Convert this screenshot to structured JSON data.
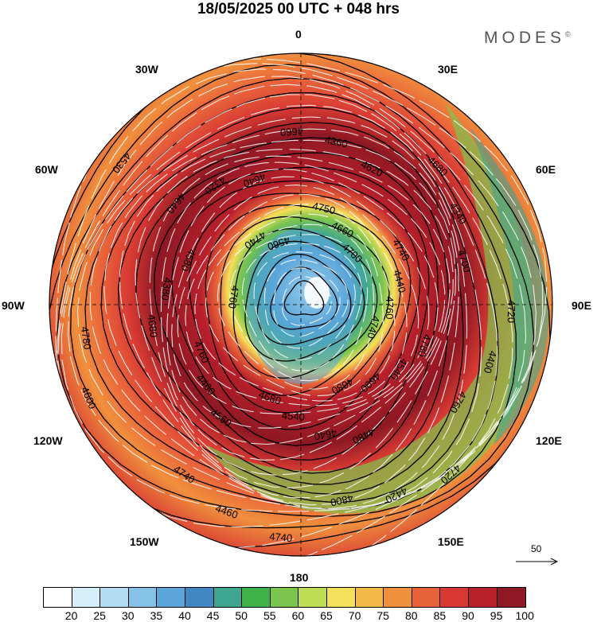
{
  "header": {
    "title": "18/05/2025  00 UTC  + 048 hrs",
    "brand": "MODES",
    "brand_mark": "©"
  },
  "map": {
    "projection": "north-polar-stereographic",
    "longitude_labels": {
      "n": "0",
      "e30": "30E",
      "e60": "60E",
      "e90": "90E",
      "e120": "120E",
      "e150": "150E",
      "s": "180",
      "w150": "150W",
      "w120": "120W",
      "w90": "90W",
      "w60": "60W",
      "w30": "30W"
    },
    "contour_labels": [
      "4740",
      "4680",
      "4680",
      "4760",
      "4580",
      "4640",
      "4620",
      "4700",
      "4760",
      "4800",
      "4740",
      "4780",
      "4530",
      "4700",
      "4700",
      "4760",
      "4600",
      "4540",
      "4460",
      "4380",
      "4320",
      "4360",
      "4340",
      "4400",
      "4420",
      "4460",
      "4600",
      "4560",
      "4560",
      "4660",
      "4440",
      "4540",
      "4640",
      "4560",
      "4680",
      "4640",
      "4660",
      "4680",
      "4720",
      "4720",
      "4740",
      "4760",
      "4760",
      "4740",
      "4750",
      "4740",
      "4780",
      "4480"
    ],
    "fill_variable": "wind speed",
    "contour_variable": "geopotential height"
  },
  "reference_vector": {
    "label": "50"
  },
  "colorbar": {
    "ticks": [
      "20",
      "25",
      "30",
      "35",
      "40",
      "45",
      "50",
      "55",
      "60",
      "65",
      "70",
      "75",
      "80",
      "85",
      "90",
      "95",
      "100"
    ],
    "colors": [
      "#ffffff",
      "#d6eefa",
      "#b2dcf2",
      "#86c2e6",
      "#5aa5d9",
      "#3f88c4",
      "#3fa691",
      "#3fb24a",
      "#7cc54f",
      "#bfdc55",
      "#f4e05a",
      "#f6b947",
      "#f0903d",
      "#e9633a",
      "#d83a33",
      "#b8202b",
      "#8e1824"
    ]
  },
  "colors": {
    "outer_ring": "#e9633a",
    "jet": "#b8202b",
    "core": "#5aa5d9",
    "center": "#ffffff"
  }
}
